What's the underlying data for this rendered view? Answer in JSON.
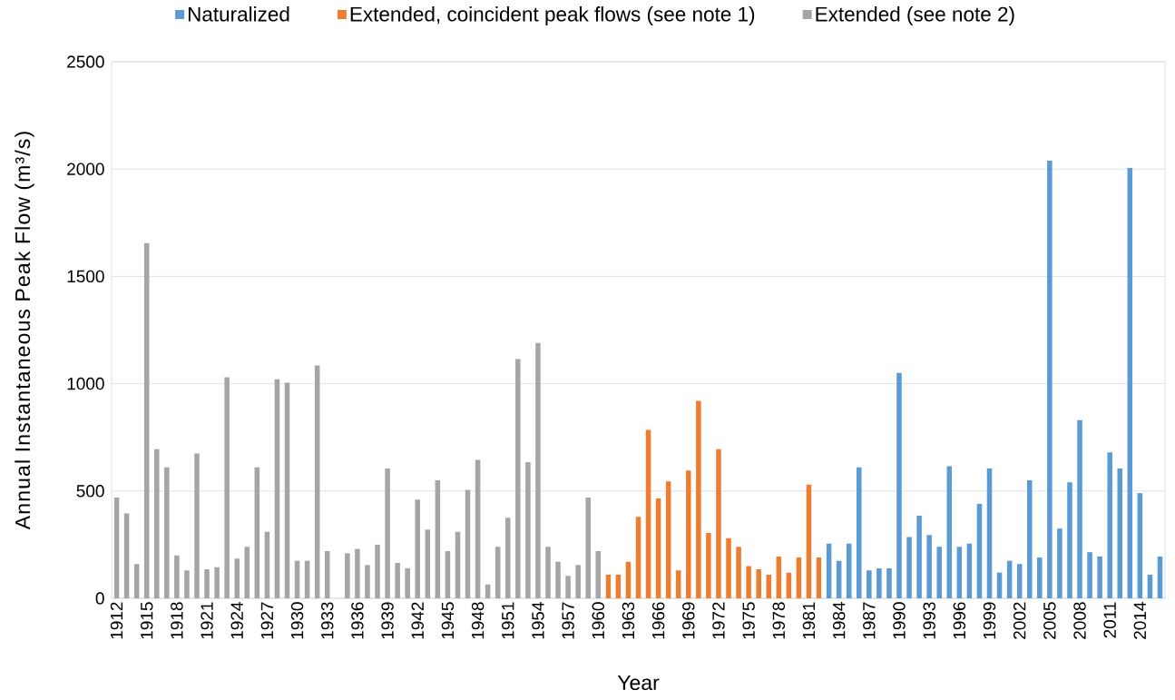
{
  "chart_data": {
    "type": "bar",
    "xlabel": "Year",
    "ylabel": "Annual Instantaneous Peak Flow (m³/s)",
    "categories": [
      "1912",
      null,
      null,
      "1915",
      null,
      null,
      "1918",
      null,
      null,
      "1921",
      null,
      null,
      "1924",
      null,
      null,
      "1927",
      null,
      null,
      "1930",
      null,
      null,
      "1933",
      null,
      null,
      "1936",
      null,
      null,
      "1939",
      null,
      null,
      "1942",
      null,
      null,
      "1945",
      null,
      null,
      "1948",
      null,
      null,
      "1951",
      null,
      null,
      "1954",
      null,
      null,
      "1957",
      null,
      null,
      "1960",
      null,
      null,
      "1963",
      null,
      null,
      "1966",
      null,
      null,
      "1969",
      null,
      null,
      "1972",
      null,
      null,
      "1975",
      null,
      null,
      "1978",
      null,
      null,
      "1981",
      null,
      null,
      "1984",
      null,
      null,
      "1987",
      null,
      null,
      "1990",
      null,
      null,
      "1993",
      null,
      null,
      "1996",
      null,
      null,
      "1999",
      null,
      null,
      "2002",
      null,
      null,
      "2005",
      null,
      null,
      "2008",
      null,
      null,
      "2011",
      null,
      null,
      "2014",
      null,
      null
    ],
    "series": [
      {
        "name": "Naturalized",
        "color": "#5b9bd5",
        "values": [
          null,
          null,
          null,
          null,
          null,
          null,
          null,
          null,
          null,
          null,
          null,
          null,
          null,
          null,
          null,
          null,
          null,
          null,
          null,
          null,
          null,
          null,
          null,
          null,
          null,
          null,
          null,
          null,
          null,
          null,
          null,
          null,
          null,
          null,
          null,
          null,
          null,
          null,
          null,
          null,
          null,
          null,
          null,
          null,
          null,
          null,
          null,
          null,
          null,
          null,
          null,
          null,
          null,
          null,
          null,
          null,
          null,
          null,
          null,
          null,
          null,
          null,
          null,
          null,
          null,
          null,
          null,
          null,
          null,
          null,
          null,
          255,
          175,
          255,
          610,
          130,
          140,
          140,
          1050,
          285,
          385,
          295,
          240,
          615,
          240,
          255,
          440,
          605,
          120,
          175,
          160,
          550,
          190,
          2040,
          325,
          540,
          830,
          215,
          195,
          680,
          605,
          2005,
          490,
          110,
          195
        ]
      },
      {
        "name": "Extended, coincident peak flows (see note 1)",
        "color": "#ed7d31",
        "values": [
          null,
          null,
          null,
          null,
          null,
          null,
          null,
          null,
          null,
          null,
          null,
          null,
          null,
          null,
          null,
          null,
          null,
          null,
          null,
          null,
          null,
          null,
          null,
          null,
          null,
          null,
          null,
          null,
          null,
          null,
          null,
          null,
          null,
          null,
          null,
          null,
          null,
          null,
          null,
          null,
          null,
          null,
          null,
          null,
          null,
          null,
          null,
          null,
          null,
          110,
          110,
          170,
          380,
          785,
          465,
          545,
          130,
          595,
          920,
          305,
          695,
          280,
          240,
          150,
          135,
          110,
          195,
          120,
          190,
          530,
          190,
          null,
          null,
          null,
          null,
          null,
          null,
          null,
          null,
          null,
          null,
          null,
          null,
          null,
          null,
          null,
          null,
          null,
          null,
          null,
          null,
          null,
          null,
          null,
          null,
          null,
          null,
          null,
          null,
          null,
          null,
          null,
          null,
          null,
          null
        ]
      },
      {
        "name": "Extended (see note 2)",
        "color": "#a5a5a5",
        "values": [
          470,
          395,
          160,
          1655,
          695,
          610,
          200,
          130,
          675,
          135,
          145,
          1030,
          185,
          240,
          610,
          310,
          1020,
          1005,
          175,
          175,
          1085,
          220,
          null,
          210,
          230,
          155,
          250,
          605,
          165,
          140,
          460,
          320,
          550,
          220,
          310,
          505,
          645,
          65,
          240,
          375,
          1115,
          635,
          1190,
          240,
          170,
          105,
          155,
          470,
          220,
          null,
          null,
          null,
          null,
          null,
          null,
          null,
          null,
          null,
          null,
          null,
          null,
          null,
          null,
          null,
          null,
          null,
          null,
          null,
          null,
          null,
          null,
          null,
          null,
          null,
          null,
          null,
          null,
          null,
          null,
          null,
          null,
          null,
          null,
          null,
          null,
          null,
          null,
          null,
          null,
          null,
          null,
          null,
          null,
          null,
          null,
          null,
          null,
          null,
          null,
          null,
          null,
          null,
          null,
          null,
          null
        ]
      }
    ],
    "ylim": [
      0,
      2500
    ],
    "yticks": [
      0,
      500,
      1000,
      1500,
      2000,
      2500
    ],
    "grid": "y",
    "legend": "top"
  }
}
